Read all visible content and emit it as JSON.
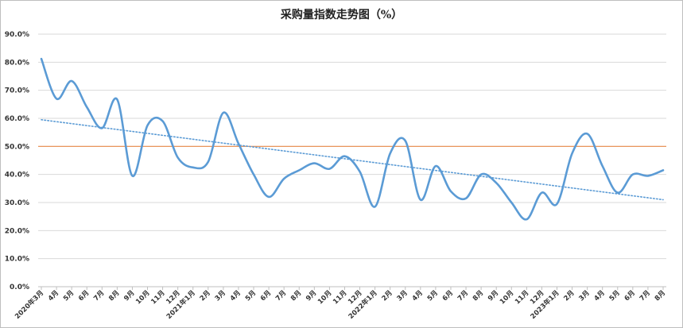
{
  "chart_data": {
    "type": "line",
    "title": "采购量指数走势图（%）",
    "xlabel": "",
    "ylabel": "",
    "ylim": [
      0,
      90
    ],
    "ytick_labels": [
      "0.0%",
      "10.0%",
      "20.0%",
      "30.0%",
      "40.0%",
      "50.0%",
      "60.0%",
      "70.0%",
      "80.0%",
      "90.0%"
    ],
    "categories": [
      "2020年3月",
      "4月",
      "5月",
      "6月",
      "7月",
      "8月",
      "9月",
      "10月",
      "11月",
      "12月",
      "2021年1月",
      "2月",
      "3月",
      "4月",
      "5月",
      "6月",
      "7月",
      "8月",
      "9月",
      "10月",
      "11月",
      "12月",
      "2022年1月",
      "2月",
      "3月",
      "4月",
      "5月",
      "6月",
      "7月",
      "8月",
      "9月",
      "10月",
      "11月",
      "12月",
      "2023年1月",
      "2月",
      "3月",
      "4月",
      "5月",
      "6月",
      "7月",
      "8月"
    ],
    "series": [
      {
        "values": [
          81.2,
          67.0,
          73.3,
          64.0,
          56.5,
          66.7,
          39.5,
          57.5,
          59.0,
          46.0,
          42.5,
          44.5,
          62.0,
          51.0,
          40.0,
          32.0,
          38.5,
          41.5,
          44.0,
          42.0,
          46.5,
          41.0,
          28.5,
          47.5,
          52.0,
          31.0,
          43.0,
          34.0,
          31.5,
          40.0,
          37.0,
          30.0,
          24.0,
          33.5,
          29.5,
          47.5,
          54.5,
          43.0,
          33.5,
          40.0,
          39.5,
          41.5
        ],
        "color": "#5b9bd5"
      }
    ],
    "trendline": {
      "start": 59.5,
      "end": 31.0,
      "color": "#5b9bd5",
      "style": "dotted"
    },
    "reference_line": {
      "value": 50,
      "color": "#ed7d31"
    },
    "grid": true,
    "legend": "none"
  }
}
